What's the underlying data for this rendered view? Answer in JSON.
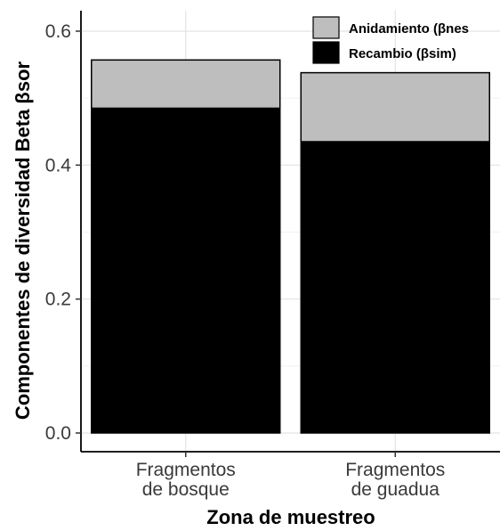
{
  "chart_data": {
    "type": "bar",
    "stacked": true,
    "categories": [
      [
        "Fragmentos",
        "de bosque"
      ],
      [
        "Fragmentos",
        "de  guadua"
      ]
    ],
    "series": [
      {
        "name": "Recambio (βsim)",
        "values": [
          0.485,
          0.435
        ],
        "color": "#000000"
      },
      {
        "name": "Anidamiento (βnes)",
        "values": [
          0.072,
          0.103
        ],
        "color": "#bebebe"
      }
    ],
    "xlabel": "Zona de muestreo",
    "ylabel": "Componentes de diversidad Beta βsor",
    "ylim": [
      0,
      0.63
    ],
    "yticks": [
      0.0,
      0.2,
      0.4,
      0.6
    ],
    "ytick_labels": [
      "0.0",
      "0.2",
      "0.4",
      "0.6"
    ],
    "grid": true,
    "legend": {
      "position": "top-right",
      "entries": [
        "Anidamiento (βnes",
        "Recambio (βsim)"
      ]
    }
  }
}
